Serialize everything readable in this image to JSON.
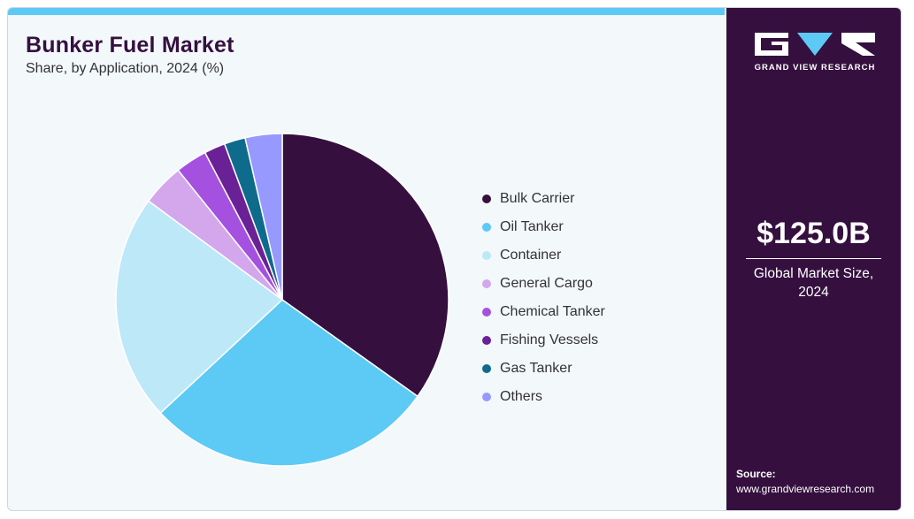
{
  "header": {
    "title": "Bunker Fuel Market",
    "subtitle": "Share, by Application, 2024 (%)"
  },
  "chart_data": {
    "type": "pie",
    "title": "Bunker Fuel Market",
    "subtitle": "Share, by Application, 2024 (%)",
    "legend_position": "right",
    "start_angle": "12 o'clock, clockwise",
    "slices": [
      {
        "label": "Bulk Carrier",
        "value": 34.0,
        "color": "#35103f"
      },
      {
        "label": "Oil Tanker",
        "value": 27.5,
        "color": "#5ccaf5"
      },
      {
        "label": "Container",
        "value": 21.5,
        "color": "#bde8f8"
      },
      {
        "label": "General Cargo",
        "value": 4.0,
        "color": "#d4a7ec"
      },
      {
        "label": "Chemical Tanker",
        "value": 3.0,
        "color": "#a551e0"
      },
      {
        "label": "Fishing Vessels",
        "value": 2.0,
        "color": "#6b2196"
      },
      {
        "label": "Gas Tanker",
        "value": 2.0,
        "color": "#0f6b8c"
      },
      {
        "label": "Others",
        "value": 3.5,
        "color": "#9899ff"
      }
    ]
  },
  "side_panel": {
    "brand": "GRAND VIEW RESEARCH",
    "market_size": "$125.0B",
    "market_caption_line1": "Global Market Size,",
    "market_caption_line2": "2024",
    "source_label": "Source:",
    "source_url": "www.grandviewresearch.com"
  },
  "colors": {
    "panel": "#35103f",
    "accent_bar": "#5ccaf5",
    "background": "#f3f8fb"
  }
}
